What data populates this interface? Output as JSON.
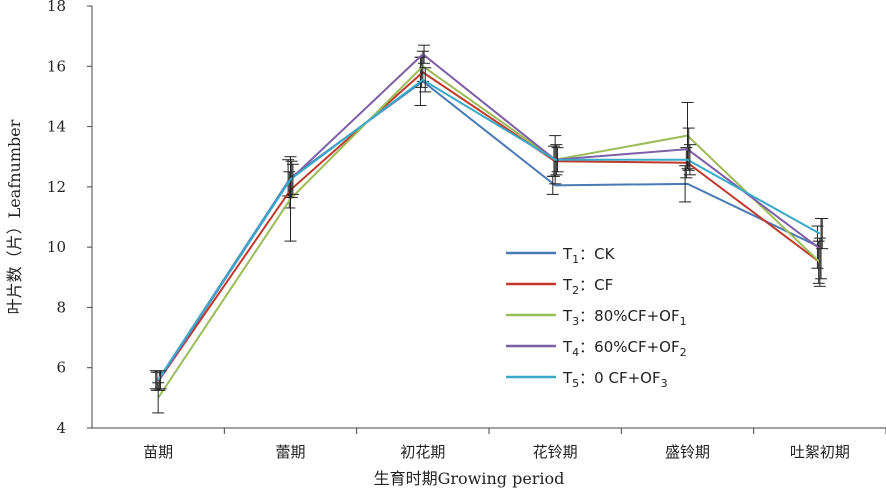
{
  "chart_data": {
    "type": "line",
    "xlabel": "生育时期Growing period",
    "ylabel": "叶片数（片）Leafnumber",
    "ylim": [
      4,
      18
    ],
    "yticks": [
      4,
      6,
      8,
      10,
      12,
      14,
      16,
      18
    ],
    "categories": [
      "苗期",
      "蕾期",
      "初花期",
      "花铃期",
      "盛铃期",
      "吐絮初期"
    ],
    "grid": false,
    "legend_position": "bottom-right",
    "series": [
      {
        "legend": {
          "main": "T",
          "sub": "1",
          "after": "：CK"
        },
        "color": "#4a7ab5",
        "values": [
          5.6,
          12.3,
          15.5,
          12.05,
          12.1,
          10.0
        ],
        "errors": [
          0.3,
          0.6,
          0.8,
          0.3,
          0.6,
          0.7
        ]
      },
      {
        "legend": {
          "main": "T",
          "sub": "2",
          "after": "：CF"
        },
        "color": "#c0392b",
        "values": [
          5.55,
          11.9,
          15.8,
          12.85,
          12.8,
          9.5
        ],
        "errors": [
          0.3,
          0.6,
          0.5,
          0.5,
          0.5,
          0.7
        ]
      },
      {
        "legend": {
          "main": "T",
          "sub": "3",
          "after": "：80%CF+OF",
          "sub2": "1"
        },
        "color": "#9bbb59",
        "values": [
          5.0,
          11.6,
          16.0,
          12.9,
          13.7,
          9.5
        ],
        "errors": [
          0.5,
          1.4,
          0.5,
          0.8,
          1.1,
          0.8
        ]
      },
      {
        "legend": {
          "main": "T",
          "sub": "4",
          "after": "：60%CF+OF",
          "sub2": "2"
        },
        "color": "#7d5fa8",
        "values": [
          5.55,
          12.25,
          16.4,
          12.9,
          13.25,
          9.95
        ],
        "errors": [
          0.3,
          0.6,
          0.3,
          0.5,
          0.7,
          1.0
        ]
      },
      {
        "legend": {
          "main": "T",
          "sub": "5",
          "after": "：0 CF+OF",
          "sub2": "3"
        },
        "color": "#3aaac8",
        "values": [
          5.6,
          12.25,
          15.55,
          12.9,
          12.9,
          10.45
        ],
        "errors": [
          0.3,
          0.5,
          0.4,
          0.4,
          0.5,
          0.5
        ]
      }
    ]
  }
}
